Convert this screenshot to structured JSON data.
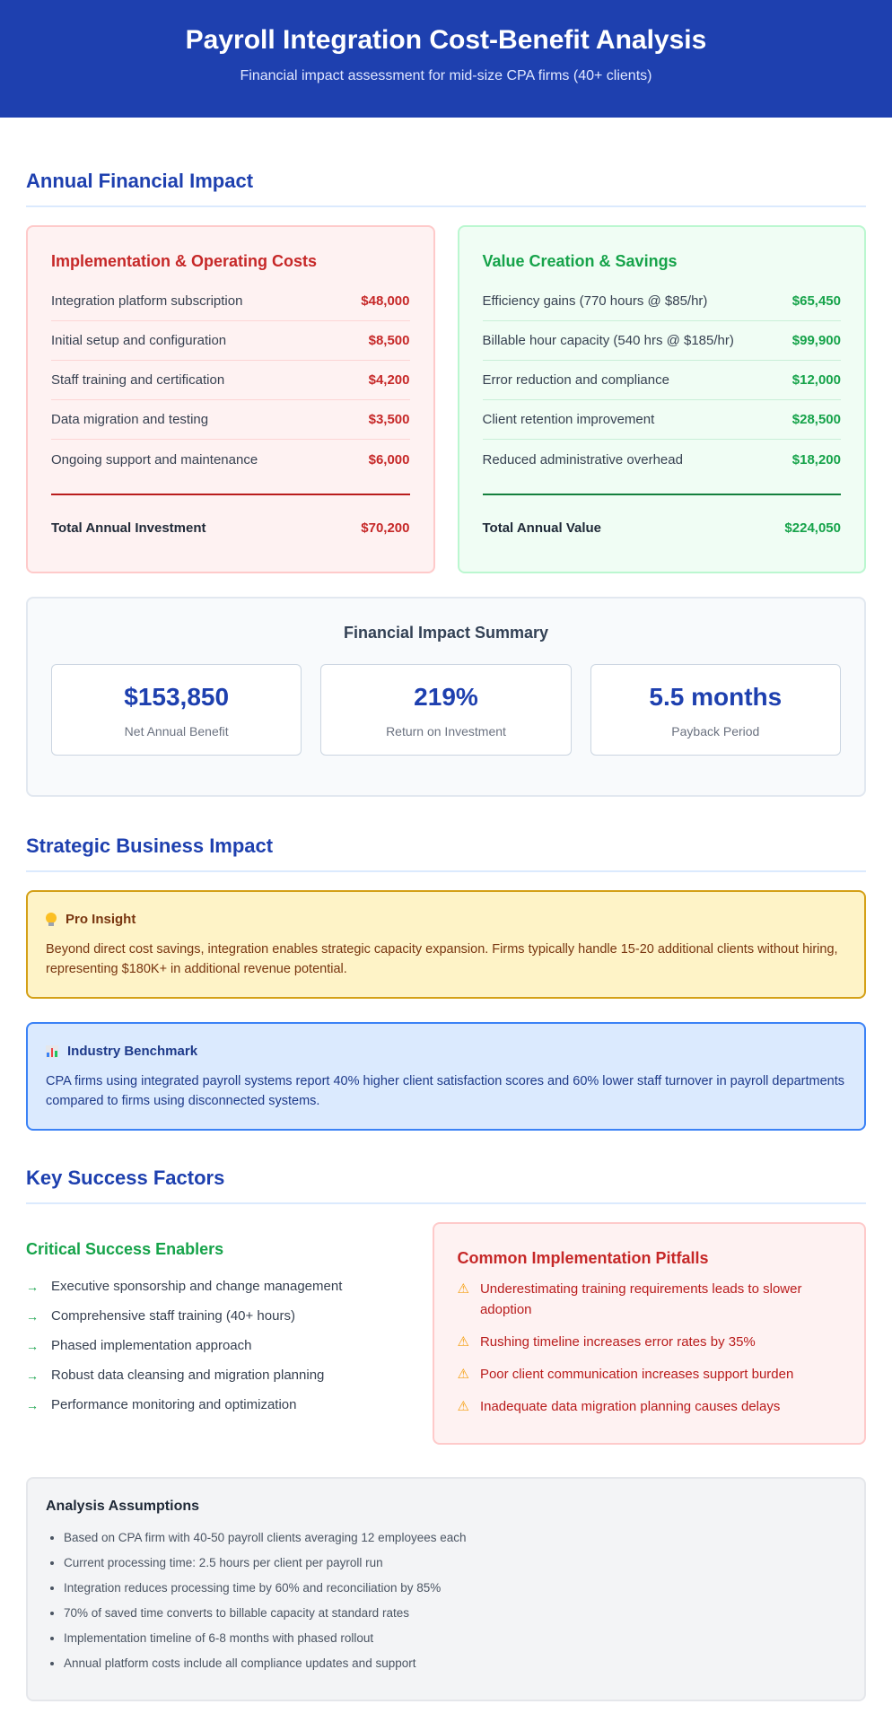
{
  "header": {
    "title": "Payroll Integration Cost-Benefit Analysis",
    "subtitle": "Financial impact assessment for mid-size CPA firms (40+ clients)"
  },
  "financial": {
    "title": "Annual Financial Impact",
    "costs": {
      "title": "Implementation & Operating Costs",
      "items": [
        {
          "label": "Integration platform subscription",
          "value": "$48,000"
        },
        {
          "label": "Initial setup and configuration",
          "value": "$8,500"
        },
        {
          "label": "Staff training and certification",
          "value": "$4,200"
        },
        {
          "label": "Data migration and testing",
          "value": "$3,500"
        },
        {
          "label": "Ongoing support and maintenance",
          "value": "$6,000"
        }
      ],
      "total_label": "Total Annual Investment",
      "total_value": "$70,200"
    },
    "value": {
      "title": "Value Creation & Savings",
      "items": [
        {
          "label": "Efficiency gains (770 hours @ $85/hr)",
          "value": "$65,450"
        },
        {
          "label": "Billable hour capacity (540 hrs @ $185/hr)",
          "value": "$99,900"
        },
        {
          "label": "Error reduction and compliance",
          "value": "$12,000"
        },
        {
          "label": "Client retention improvement",
          "value": "$28,500"
        },
        {
          "label": "Reduced administrative overhead",
          "value": "$18,200"
        }
      ],
      "total_label": "Total Annual Value",
      "total_value": "$224,050"
    }
  },
  "summary": {
    "title": "Financial Impact Summary",
    "metrics": [
      {
        "value": "$153,850",
        "label": "Net Annual Benefit"
      },
      {
        "value": "219%",
        "label": "Return on Investment"
      },
      {
        "value": "5.5 months",
        "label": "Payback Period"
      }
    ]
  },
  "strategic": {
    "title": "Strategic Business Impact",
    "insight": {
      "icon": "lightbulb-icon",
      "title": "Pro Insight",
      "text": "Beyond direct cost savings, integration enables strategic capacity expansion. Firms typically handle 15-20 additional clients without hiring, representing $180K+ in additional revenue potential."
    },
    "benchmark": {
      "icon": "bar-chart-icon",
      "title": "Industry Benchmark",
      "text": "CPA firms using integrated payroll systems report 40% higher client satisfaction scores and 60% lower staff turnover in payroll departments compared to firms using disconnected systems."
    }
  },
  "success": {
    "title": "Key Success Factors",
    "enablers": {
      "title": "Critical Success Enablers",
      "arrow": "→",
      "items": [
        "Executive sponsorship and change management",
        "Comprehensive staff training (40+ hours)",
        "Phased implementation approach",
        "Robust data cleansing and migration planning",
        "Performance monitoring and optimization"
      ]
    },
    "pitfalls": {
      "title": "Common Implementation Pitfalls",
      "warning": "⚠",
      "items": [
        "Underestimating training requirements leads to slower adoption",
        "Rushing timeline increases error rates by 35%",
        "Poor client communication increases support burden",
        "Inadequate data migration planning causes delays"
      ]
    }
  },
  "assumptions": {
    "title": "Analysis Assumptions",
    "items": [
      "Based on CPA firm with 40-50 payroll clients averaging 12 employees each",
      "Current processing time: 2.5 hours per client per payroll run",
      "Integration reduces processing time by 60% and reconciliation by 85%",
      "70% of saved time converts to billable capacity at standard rates",
      "Implementation timeline of 6-8 months with phased rollout",
      "Annual platform costs include all compliance updates and support"
    ]
  }
}
